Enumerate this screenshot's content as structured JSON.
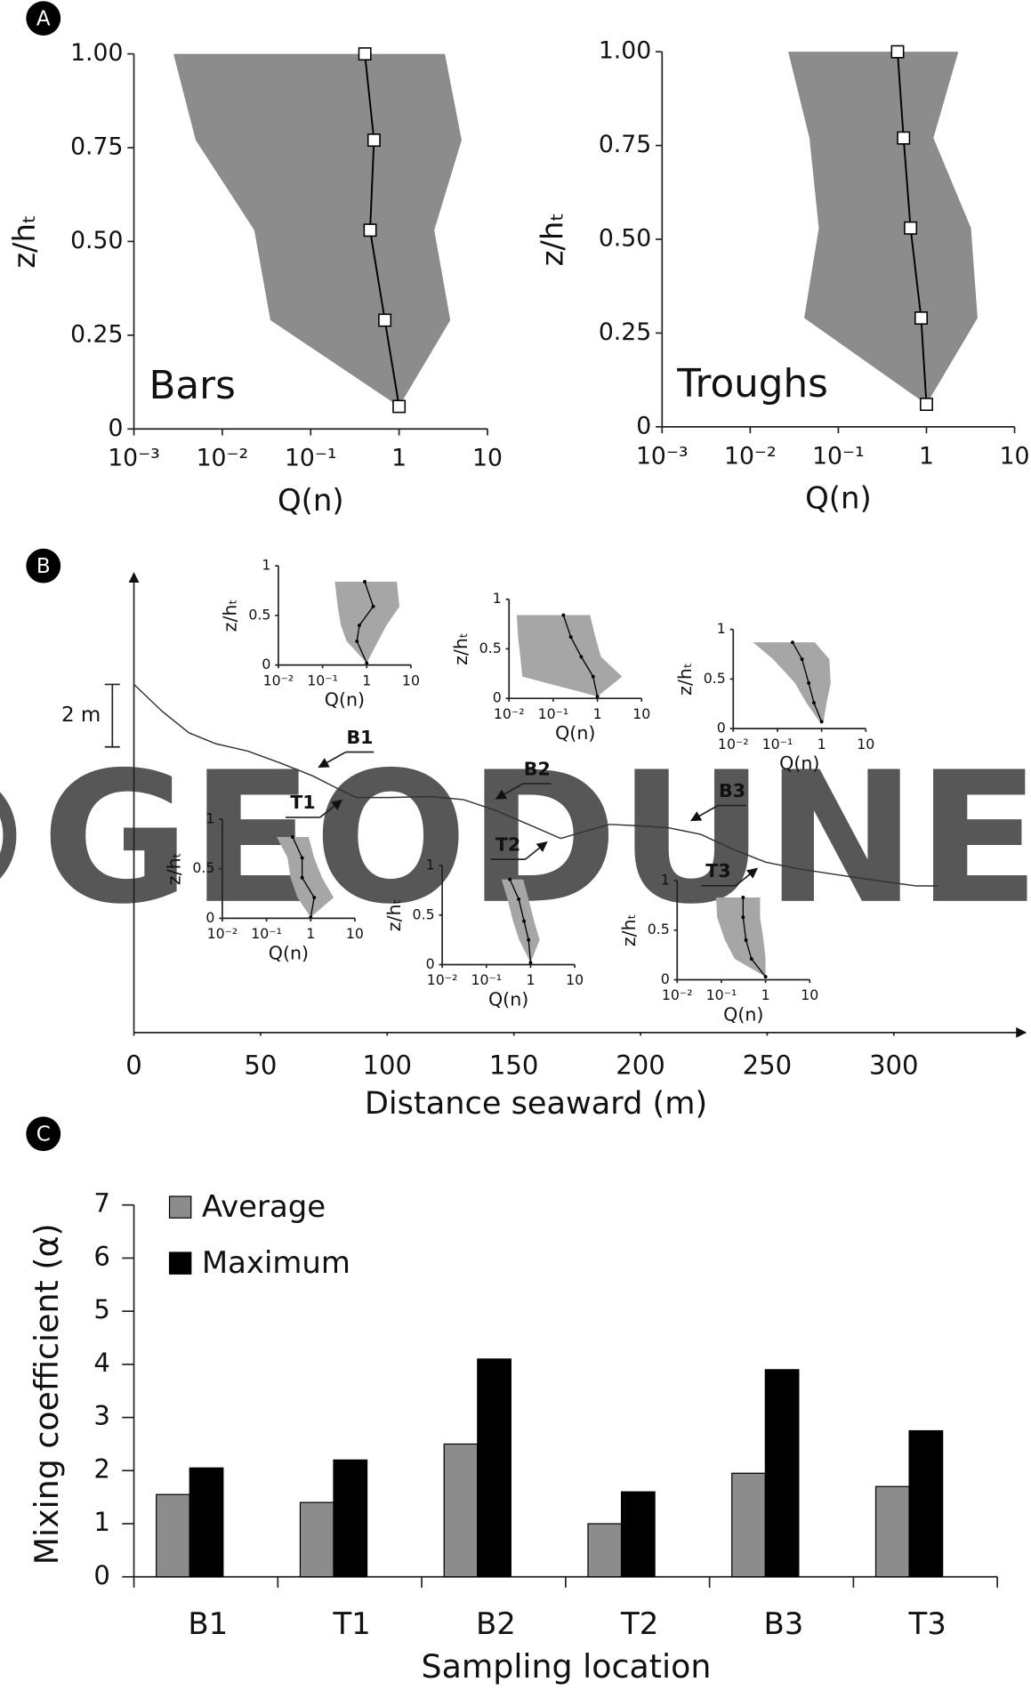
{
  "panel_labels": [
    "A",
    "B",
    "C"
  ],
  "watermark": "©GEODUNES",
  "chart_data": [
    {
      "type": "profile",
      "title": "Bars",
      "xlabel": "Q(n)",
      "ylabel": "z/hₜ",
      "log_x": true,
      "xlim": [
        0.001,
        10
      ],
      "xticks": [
        {
          "value": 0.001,
          "label": "10⁻³"
        },
        {
          "value": 0.01,
          "label": "10⁻²"
        },
        {
          "value": 0.1,
          "label": "10⁻¹"
        },
        1,
        10
      ],
      "ylim": [
        0,
        1
      ],
      "yticks": [
        0,
        0.25,
        {
          "value": 0.5,
          "label": "0.50"
        },
        0.75,
        {
          "value": 1,
          "label": "1.00"
        }
      ],
      "markers": "square",
      "color": "#8c8c8c",
      "line_color": "#000000",
      "z": [
        0.06,
        0.29,
        0.53,
        0.77,
        1.0
      ],
      "mean": [
        1,
        0.69,
        0.47,
        0.52,
        0.41
      ],
      "min": [
        1,
        0.035,
        0.023,
        0.005,
        0.0028
      ],
      "max": [
        1,
        3.8,
        2.5,
        5.1,
        3.3
      ]
    },
    {
      "type": "profile",
      "title": "Troughs",
      "xlabel": "Q(n)",
      "ylabel": "z/hₜ",
      "log_x": true,
      "xlim": [
        0.001,
        10
      ],
      "xticks": [
        {
          "value": 0.001,
          "label": "10⁻³"
        },
        {
          "value": 0.01,
          "label": "10⁻²"
        },
        {
          "value": 0.1,
          "label": "10⁻¹"
        },
        1,
        10
      ],
      "ylim": [
        0,
        1
      ],
      "yticks": [
        0,
        0.25,
        {
          "value": 0.5,
          "label": "0.50"
        },
        0.75,
        {
          "value": 1,
          "label": "1.00"
        }
      ],
      "markers": "square",
      "color": "#8c8c8c",
      "line_color": "#000000",
      "z": [
        0.06,
        0.29,
        0.53,
        0.77,
        1.0
      ],
      "mean": [
        1,
        0.87,
        0.66,
        0.55,
        0.47
      ],
      "min": [
        1,
        0.041,
        0.06,
        0.047,
        0.027
      ],
      "max": [
        1,
        3.8,
        3.2,
        1.2,
        2.3
      ]
    },
    {
      "type": "transect",
      "xlabel": "Distance seaward (m)",
      "xlim": [
        0,
        352
      ],
      "xticks": [
        0,
        50,
        100,
        150,
        200,
        250,
        300
      ],
      "ylim": [
        0,
        14.7
      ],
      "line_color": "#333333",
      "x": [
        0,
        11.1,
        21.7,
        32.3,
        45.1,
        57.9,
        70.6,
        79.1,
        87.7,
        100.4,
        117.4,
        130.2,
        143.0,
        155.7,
        168.5,
        177.0,
        187.7,
        198.3,
        211.1,
        223.8,
        236.6,
        249.4,
        262.1,
        279.1,
        296.2,
        308.9,
        317.4
      ],
      "elevation": [
        11.14,
        10.28,
        9.59,
        9.24,
        9.0,
        8.62,
        8.21,
        7.86,
        7.52,
        7.52,
        7.55,
        7.45,
        7.1,
        6.66,
        6.21,
        6.41,
        6.66,
        6.62,
        6.55,
        6.34,
        5.86,
        5.45,
        5.24,
        5.03,
        4.83,
        4.69,
        4.69
      ],
      "scale_bar": {
        "value": 2,
        "label": "2 m"
      },
      "sites": [
        {
          "label": "B1",
          "distance": 73,
          "kind": "bar"
        },
        {
          "label": "T1",
          "distance": 82,
          "kind": "trough"
        },
        {
          "label": "B2",
          "distance": 143,
          "kind": "bar"
        },
        {
          "label": "T2",
          "distance": 163,
          "kind": "trough"
        },
        {
          "label": "B3",
          "distance": 220,
          "kind": "bar"
        },
        {
          "label": "T3",
          "distance": 246,
          "kind": "trough"
        }
      ],
      "insets": [
        {
          "type": "profile",
          "xlabel": "Q(n)",
          "ylabel": "z/hₜ",
          "log_x": true,
          "xlim": [
            0.01,
            10
          ],
          "xticks": [
            {
              "value": 0.01,
              "label": "10⁻²"
            },
            {
              "value": 0.1,
              "label": "10⁻¹"
            },
            1,
            10
          ],
          "ylim": [
            0,
            1
          ],
          "yticks": [
            0,
            0.5,
            1
          ],
          "markers": "dot",
          "color": "#a6a6a6",
          "line_color": "#000000",
          "z": [
            0.02,
            0.24,
            0.4,
            0.59,
            0.84
          ],
          "mean": [
            1,
            0.6,
            0.68,
            1.4,
            0.9
          ],
          "min": [
            1,
            0.35,
            0.26,
            0.22,
            0.19
          ],
          "max": [
            1,
            1.8,
            2.8,
            5.5,
            4.8
          ]
        },
        {
          "type": "profile",
          "xlabel": "Q(n)",
          "ylabel": "z/hₜ",
          "log_x": true,
          "xlim": [
            0.01,
            10
          ],
          "xticks": [
            {
              "value": 0.01,
              "label": "10⁻²"
            },
            {
              "value": 0.1,
              "label": "10⁻¹"
            },
            1,
            10
          ],
          "ylim": [
            0,
            1
          ],
          "yticks": [
            0,
            0.5,
            1
          ],
          "markers": "dot",
          "color": "#a6a6a6",
          "line_color": "#000000",
          "z": [
            0.01,
            0.21,
            0.41,
            0.61,
            0.82
          ],
          "mean": [
            1,
            1.2,
            0.64,
            0.64,
            0.39
          ],
          "min": [
            1,
            0.5,
            0.35,
            0.3,
            0.17
          ],
          "max": [
            1,
            3.3,
            1.8,
            1.2,
            0.9
          ]
        },
        {
          "type": "profile",
          "xlabel": "Q(n)",
          "ylabel": "z/hₜ",
          "log_x": true,
          "xlim": [
            0.01,
            10
          ],
          "xticks": [
            {
              "value": 0.01,
              "label": "10⁻²"
            },
            {
              "value": 0.1,
              "label": "10⁻¹"
            },
            1,
            10
          ],
          "ylim": [
            0,
            1
          ],
          "yticks": [
            0,
            0.5,
            1
          ],
          "markers": "dot",
          "color": "#a6a6a6",
          "line_color": "#000000",
          "z": [
            0.02,
            0.22,
            0.42,
            0.62,
            0.84
          ],
          "mean": [
            1,
            0.8,
            0.43,
            0.25,
            0.17
          ],
          "min": [
            1,
            0.02,
            0.018,
            0.016,
            0.015
          ],
          "max": [
            1,
            3.6,
            1.2,
            0.9,
            0.68
          ]
        },
        {
          "type": "profile",
          "xlabel": "Q(n)",
          "ylabel": "z/hₜ",
          "log_x": true,
          "xlim": [
            0.01,
            10
          ],
          "xticks": [
            {
              "value": 0.01,
              "label": "10⁻²"
            },
            {
              "value": 0.1,
              "label": "10⁻¹"
            },
            1,
            10
          ],
          "ylim": [
            0,
            1
          ],
          "yticks": [
            0,
            0.5,
            1
          ],
          "markers": "dot",
          "color": "#a6a6a6",
          "line_color": "#000000",
          "z": [
            0.02,
            0.25,
            0.44,
            0.66,
            0.86
          ],
          "mean": [
            1,
            0.9,
            0.71,
            0.54,
            0.34
          ],
          "min": [
            1,
            0.55,
            0.4,
            0.3,
            0.22
          ],
          "max": [
            1,
            1.6,
            1.2,
            0.9,
            0.68
          ]
        },
        {
          "type": "profile",
          "xlabel": "Q(n)",
          "ylabel": "z/hₜ",
          "log_x": true,
          "xlim": [
            0.01,
            10
          ],
          "xticks": [
            {
              "value": 0.01,
              "label": "10⁻²"
            },
            {
              "value": 0.1,
              "label": "10⁻¹"
            },
            1,
            10
          ],
          "ylim": [
            0,
            1
          ],
          "yticks": [
            0,
            0.5,
            1
          ],
          "markers": "dot",
          "color": "#a6a6a6",
          "line_color": "#000000",
          "z": [
            0.07,
            0.26,
            0.46,
            0.7,
            0.87
          ],
          "mean": [
            1,
            0.67,
            0.51,
            0.36,
            0.22
          ],
          "min": [
            0.9,
            0.45,
            0.25,
            0.08,
            0.028
          ],
          "max": [
            1.1,
            1.3,
            1.6,
            1.5,
            0.7
          ]
        },
        {
          "type": "profile",
          "xlabel": "Q(n)",
          "ylabel": "z/hₜ",
          "log_x": true,
          "xlim": [
            0.01,
            10
          ],
          "xticks": [
            {
              "value": 0.01,
              "label": "10⁻²"
            },
            {
              "value": 0.1,
              "label": "10⁻¹"
            },
            1,
            10
          ],
          "ylim": [
            0,
            1
          ],
          "yticks": [
            0,
            0.5,
            1
          ],
          "markers": "dot",
          "color": "#a6a6a6",
          "line_color": "#000000",
          "z": [
            0.03,
            0.21,
            0.4,
            0.63,
            0.83
          ],
          "mean": [
            1,
            0.48,
            0.36,
            0.31,
            0.31
          ],
          "min": [
            1,
            0.2,
            0.12,
            0.08,
            0.076
          ],
          "max": [
            1,
            1,
            0.9,
            0.75,
            0.75
          ]
        }
      ]
    },
    {
      "type": "bar",
      "xlabel": "Sampling location",
      "ylabel": "Mixing coefficient (α)",
      "categories": [
        "B1",
        "T1",
        "B2",
        "T2",
        "B3",
        "T3"
      ],
      "series": [
        {
          "name": "Average",
          "color": "#8c8c8c",
          "values": [
            1.55,
            1.4,
            2.5,
            1.0,
            1.95,
            1.7
          ]
        },
        {
          "name": "Maximum",
          "color": "#000000",
          "values": [
            2.05,
            2.2,
            4.1,
            1.6,
            3.9,
            2.75
          ]
        }
      ],
      "ylim": [
        0,
        7
      ],
      "yticks": [
        0,
        1,
        2,
        3,
        4,
        5,
        6,
        7
      ],
      "legend": "upper left"
    }
  ]
}
